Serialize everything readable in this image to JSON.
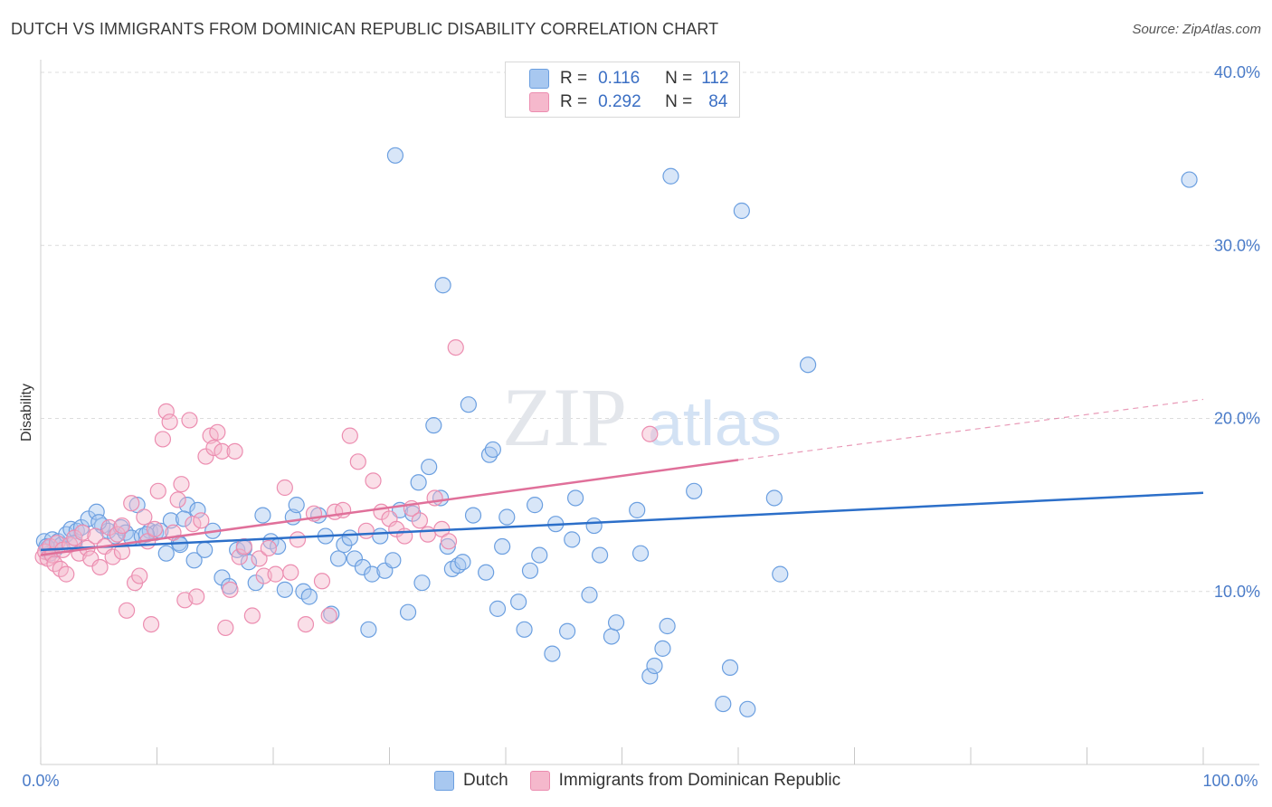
{
  "header": {
    "title": "DUTCH VS IMMIGRANTS FROM DOMINICAN REPUBLIC DISABILITY CORRELATION CHART",
    "source": "Source: ZipAtlas.com"
  },
  "watermark": {
    "zip": "ZIP",
    "atlas": "atlas"
  },
  "legend": {
    "rows": [
      {
        "r_label": "R =",
        "r_value": "0.116",
        "n_label": "N =",
        "n_value": "112",
        "color": "#a8c8f0"
      },
      {
        "r_label": "R =",
        "r_value": "0.292",
        "n_label": "N =",
        "n_value": "84",
        "color": "#f5b8cc"
      }
    ]
  },
  "bottom_legend": {
    "items": [
      {
        "label": "Dutch",
        "color": "#a8c8f0"
      },
      {
        "label": "Immigrants from Dominican Republic",
        "color": "#f5b8cc"
      }
    ]
  },
  "chart_data": {
    "type": "scatter",
    "ylabel": "Disability",
    "xlim": [
      0,
      100
    ],
    "ylim": [
      0,
      40
    ],
    "x_tick_labels": [
      "0.0%",
      "100.0%"
    ],
    "y_ticks": [
      10,
      20,
      30,
      40
    ],
    "y_tick_labels": [
      "10.0%",
      "20.0%",
      "30.0%",
      "40.0%"
    ],
    "grid": "horizontal dashed",
    "series": [
      {
        "name": "Dutch",
        "color": "#6b9fe0",
        "fill": "#a8c8f0",
        "trend": {
          "x": [
            0,
            100
          ],
          "y": [
            12.4,
            15.7
          ],
          "dashed_from": null,
          "color": "#2c6fc9"
        },
        "points": [
          [
            0.3,
            12.9
          ],
          [
            0.6,
            12.5
          ],
          [
            0.8,
            12.2
          ],
          [
            1.0,
            13.0
          ],
          [
            1.2,
            12.4
          ],
          [
            1.5,
            12.9
          ],
          [
            1.8,
            12.7
          ],
          [
            2.2,
            13.3
          ],
          [
            2.6,
            13.6
          ],
          [
            3.1,
            13.5
          ],
          [
            3.5,
            13.7
          ],
          [
            4.1,
            14.2
          ],
          [
            4.8,
            14.6
          ],
          [
            5.3,
            13.8
          ],
          [
            5.8,
            13.5
          ],
          [
            6.4,
            13.2
          ],
          [
            6.9,
            13.7
          ],
          [
            7.3,
            13.4
          ],
          [
            7.8,
            13.1
          ],
          [
            8.3,
            15.0
          ],
          [
            8.7,
            13.2
          ],
          [
            9.4,
            13.5
          ],
          [
            9.9,
            13.4
          ],
          [
            10.3,
            13.5
          ],
          [
            10.8,
            12.2
          ],
          [
            11.2,
            14.1
          ],
          [
            11.9,
            12.8
          ],
          [
            12.6,
            15.0
          ],
          [
            12.3,
            14.2
          ],
          [
            13.5,
            14.7
          ],
          [
            13.2,
            11.8
          ],
          [
            14.1,
            12.4
          ],
          [
            14.8,
            13.5
          ],
          [
            15.6,
            10.8
          ],
          [
            16.2,
            10.3
          ],
          [
            16.9,
            12.4
          ],
          [
            17.5,
            12.5
          ],
          [
            17.9,
            11.7
          ],
          [
            18.5,
            10.5
          ],
          [
            19.1,
            14.4
          ],
          [
            19.8,
            12.9
          ],
          [
            20.4,
            12.6
          ],
          [
            21.0,
            10.1
          ],
          [
            21.7,
            14.3
          ],
          [
            22.0,
            15.0
          ],
          [
            22.6,
            10.0
          ],
          [
            23.1,
            9.7
          ],
          [
            23.9,
            14.4
          ],
          [
            24.5,
            13.2
          ],
          [
            25.0,
            8.7
          ],
          [
            25.6,
            11.9
          ],
          [
            26.1,
            12.7
          ],
          [
            26.6,
            13.1
          ],
          [
            27.0,
            11.9
          ],
          [
            27.7,
            11.4
          ],
          [
            28.2,
            7.8
          ],
          [
            28.5,
            11.0
          ],
          [
            29.2,
            13.2
          ],
          [
            29.6,
            11.2
          ],
          [
            30.3,
            11.8
          ],
          [
            30.9,
            14.7
          ],
          [
            31.6,
            8.8
          ],
          [
            32.0,
            14.5
          ],
          [
            32.5,
            16.3
          ],
          [
            32.8,
            10.5
          ],
          [
            33.4,
            17.2
          ],
          [
            33.8,
            19.6
          ],
          [
            34.4,
            15.4
          ],
          [
            35.0,
            12.6
          ],
          [
            35.4,
            11.3
          ],
          [
            35.9,
            11.5
          ],
          [
            36.3,
            11.7
          ],
          [
            37.2,
            14.4
          ],
          [
            38.3,
            11.1
          ],
          [
            38.6,
            17.9
          ],
          [
            38.9,
            18.2
          ],
          [
            39.3,
            9.0
          ],
          [
            39.7,
            12.6
          ],
          [
            40.1,
            14.3
          ],
          [
            41.1,
            9.4
          ],
          [
            41.6,
            7.8
          ],
          [
            42.1,
            11.2
          ],
          [
            42.5,
            15.0
          ],
          [
            42.9,
            12.1
          ],
          [
            44.0,
            6.4
          ],
          [
            44.3,
            13.9
          ],
          [
            45.3,
            7.7
          ],
          [
            46.0,
            15.4
          ],
          [
            47.2,
            9.8
          ],
          [
            47.6,
            13.8
          ],
          [
            48.1,
            12.1
          ],
          [
            49.1,
            7.4
          ],
          [
            49.5,
            8.2
          ],
          [
            51.3,
            14.7
          ],
          [
            51.6,
            12.2
          ],
          [
            52.4,
            5.1
          ],
          [
            52.8,
            5.7
          ],
          [
            53.5,
            6.7
          ],
          [
            53.9,
            8.0
          ],
          [
            56.2,
            15.8
          ],
          [
            58.7,
            3.5
          ],
          [
            59.3,
            5.6
          ],
          [
            60.3,
            32.0
          ],
          [
            60.8,
            3.2
          ],
          [
            63.1,
            15.4
          ],
          [
            63.6,
            11.0
          ],
          [
            66.0,
            23.1
          ],
          [
            34.6,
            27.7
          ],
          [
            30.5,
            35.2
          ],
          [
            54.2,
            34.0
          ],
          [
            98.8,
            33.8
          ],
          [
            36.8,
            20.8
          ],
          [
            0.5,
            12.6
          ],
          [
            2.9,
            12.8
          ],
          [
            5.0,
            14.0
          ],
          [
            9.1,
            13.3
          ],
          [
            12.0,
            12.7
          ],
          [
            45.7,
            13.0
          ]
        ]
      },
      {
        "name": "Immigrants from Dominican Republic",
        "color": "#ec8db0",
        "fill": "#f5b8cc",
        "trend": {
          "x": [
            0,
            60,
            100
          ],
          "y": [
            12.1,
            17.6,
            21.1
          ],
          "dashed_from": 60,
          "color": "#e0709a"
        },
        "points": [
          [
            0.2,
            12.0
          ],
          [
            0.4,
            12.3
          ],
          [
            0.6,
            11.9
          ],
          [
            0.8,
            12.6
          ],
          [
            1.0,
            12.1
          ],
          [
            1.2,
            11.6
          ],
          [
            1.4,
            12.8
          ],
          [
            1.7,
            11.3
          ],
          [
            1.9,
            12.4
          ],
          [
            2.2,
            11.0
          ],
          [
            2.5,
            12.7
          ],
          [
            2.9,
            13.1
          ],
          [
            3.3,
            12.2
          ],
          [
            3.6,
            13.4
          ],
          [
            4.0,
            12.5
          ],
          [
            4.3,
            11.9
          ],
          [
            4.7,
            13.2
          ],
          [
            5.1,
            11.4
          ],
          [
            5.5,
            12.6
          ],
          [
            5.9,
            13.7
          ],
          [
            6.2,
            12.0
          ],
          [
            6.6,
            13.3
          ],
          [
            7.0,
            12.3
          ],
          [
            7.4,
            8.9
          ],
          [
            7.8,
            15.1
          ],
          [
            8.1,
            10.5
          ],
          [
            8.5,
            10.9
          ],
          [
            8.9,
            14.3
          ],
          [
            9.2,
            12.9
          ],
          [
            9.5,
            8.1
          ],
          [
            9.8,
            13.6
          ],
          [
            10.1,
            15.8
          ],
          [
            10.5,
            18.8
          ],
          [
            10.8,
            20.4
          ],
          [
            11.1,
            19.8
          ],
          [
            11.4,
            13.4
          ],
          [
            11.8,
            15.3
          ],
          [
            12.1,
            16.2
          ],
          [
            12.4,
            9.5
          ],
          [
            12.8,
            19.9
          ],
          [
            13.1,
            13.9
          ],
          [
            13.4,
            9.7
          ],
          [
            13.8,
            14.1
          ],
          [
            14.2,
            17.8
          ],
          [
            14.6,
            19.0
          ],
          [
            14.9,
            18.3
          ],
          [
            15.2,
            19.2
          ],
          [
            15.6,
            18.1
          ],
          [
            15.9,
            7.9
          ],
          [
            16.3,
            10.1
          ],
          [
            16.7,
            18.1
          ],
          [
            17.1,
            12.0
          ],
          [
            17.5,
            12.6
          ],
          [
            18.2,
            8.6
          ],
          [
            18.8,
            11.9
          ],
          [
            19.2,
            10.9
          ],
          [
            19.6,
            12.5
          ],
          [
            20.2,
            11.0
          ],
          [
            21.0,
            16.0
          ],
          [
            21.5,
            11.1
          ],
          [
            22.1,
            13.0
          ],
          [
            22.8,
            8.1
          ],
          [
            23.5,
            14.5
          ],
          [
            24.2,
            10.6
          ],
          [
            24.8,
            8.6
          ],
          [
            25.3,
            14.6
          ],
          [
            26.0,
            14.7
          ],
          [
            26.6,
            19.0
          ],
          [
            27.3,
            17.5
          ],
          [
            28.0,
            13.5
          ],
          [
            28.6,
            16.4
          ],
          [
            29.3,
            14.6
          ],
          [
            30.0,
            14.2
          ],
          [
            30.6,
            13.6
          ],
          [
            31.3,
            13.2
          ],
          [
            31.9,
            14.8
          ],
          [
            32.6,
            14.1
          ],
          [
            33.3,
            13.3
          ],
          [
            33.9,
            15.4
          ],
          [
            34.5,
            13.6
          ],
          [
            35.1,
            12.9
          ],
          [
            35.7,
            24.1
          ],
          [
            52.4,
            19.1
          ],
          [
            7.0,
            13.8
          ]
        ]
      }
    ]
  }
}
